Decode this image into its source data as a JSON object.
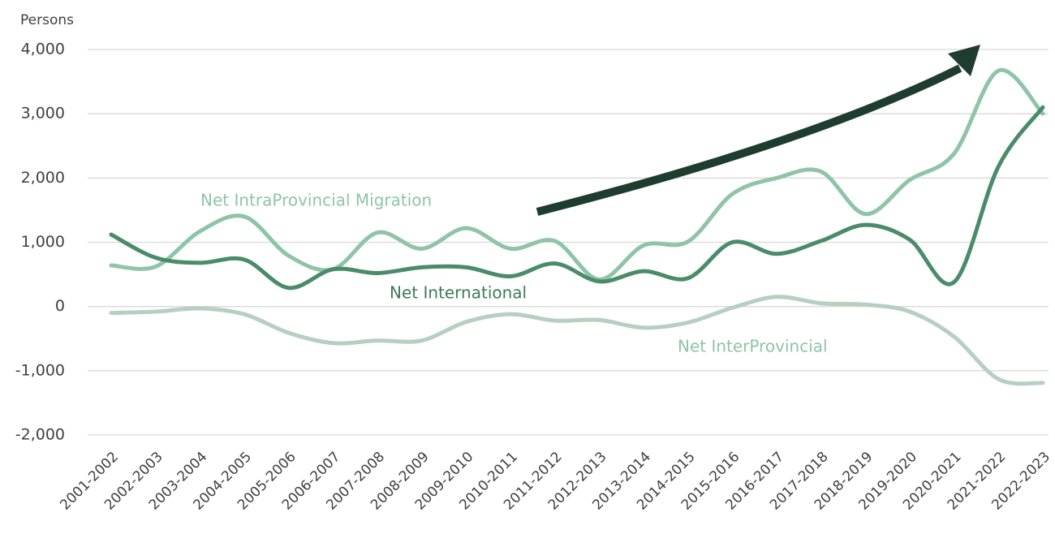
{
  "chart_data": {
    "type": "line",
    "y_axis_label": "Persons",
    "categories": [
      "2001-2002",
      "2002-2003",
      "2003-2004",
      "2004-2005",
      "2005-2006",
      "2006-2007",
      "2007-2008",
      "2008-2009",
      "2009-2010",
      "2010-2011",
      "2011-2012",
      "2012-2013",
      "2013-2014",
      "2014-2015",
      "2015-2016",
      "2016-2017",
      "2017-2018",
      "2018-2019",
      "2019-2020",
      "2020-2021",
      "2021-2022",
      "2022-2023"
    ],
    "series": [
      {
        "name": "Net IntraProvincial Migration",
        "color": "#8fc4a8",
        "values": [
          640,
          620,
          1170,
          1400,
          790,
          580,
          1150,
          900,
          1220,
          900,
          1020,
          420,
          950,
          1010,
          1750,
          2000,
          2100,
          1440,
          1970,
          2380,
          3670,
          3000
        ]
      },
      {
        "name": "Net International",
        "color": "#4a8c6a",
        "values": [
          1120,
          760,
          680,
          730,
          290,
          580,
          520,
          610,
          610,
          470,
          670,
          390,
          550,
          440,
          1000,
          820,
          1020,
          1270,
          1040,
          380,
          2180,
          3100
        ]
      },
      {
        "name": "Net InterProvincial",
        "color": "#b7cfc1",
        "values": [
          -100,
          -80,
          -30,
          -120,
          -410,
          -570,
          -530,
          -530,
          -240,
          -120,
          -220,
          -210,
          -330,
          -250,
          -20,
          150,
          50,
          30,
          -80,
          -470,
          -1130,
          -1190
        ]
      }
    ],
    "ylim": [
      -2000,
      4000
    ],
    "yticks": [
      {
        "value": -2000,
        "label": "-2,000"
      },
      {
        "value": -1000,
        "label": "-1,000"
      },
      0,
      {
        "value": 1000,
        "label": "1,000"
      },
      {
        "value": 2000,
        "label": "2,000"
      },
      {
        "value": 3000,
        "label": "3,000"
      },
      {
        "value": 4000,
        "label": "4,000"
      }
    ],
    "grid": true
  }
}
